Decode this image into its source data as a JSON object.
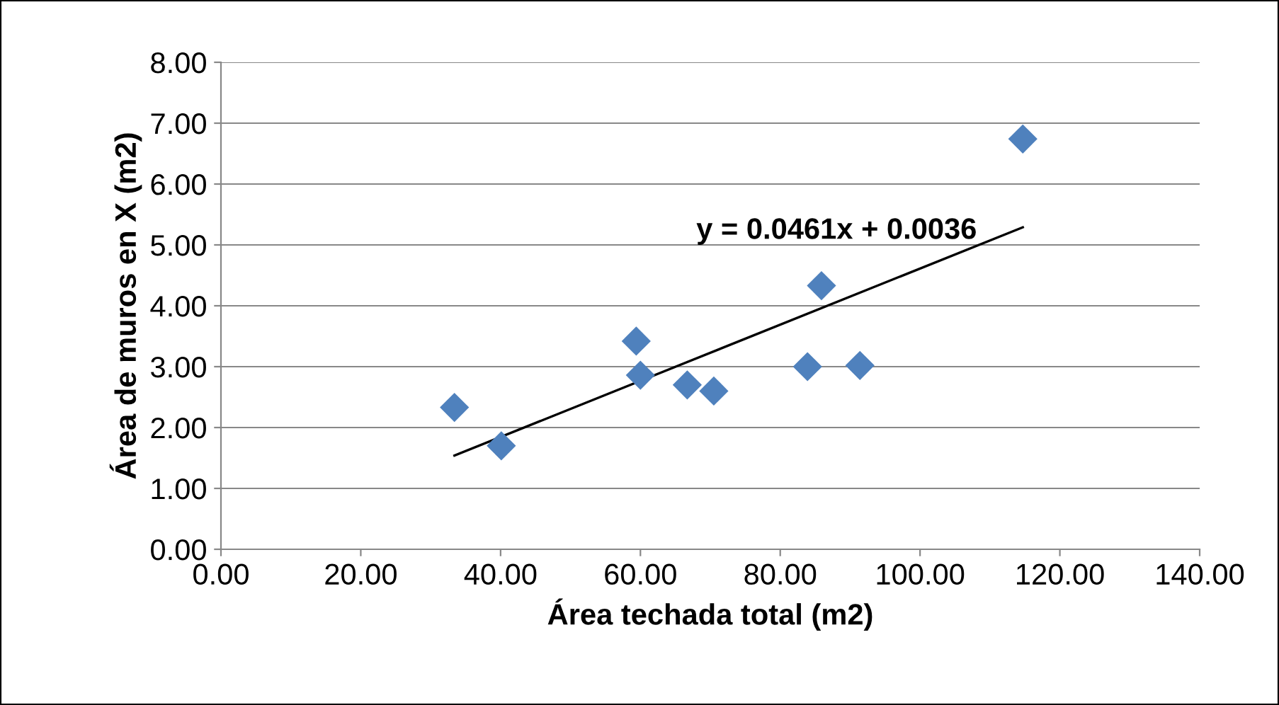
{
  "chart_data": {
    "type": "scatter",
    "xlabel": "Área techada total (m2)",
    "ylabel": "Área de muros en X (m2)",
    "xlim": [
      0,
      140
    ],
    "ylim": [
      0,
      8
    ],
    "xticks": [
      {
        "value": 0,
        "label": "0.00"
      },
      {
        "value": 20,
        "label": "20.00"
      },
      {
        "value": 40,
        "label": "40.00"
      },
      {
        "value": 60,
        "label": "60.00"
      },
      {
        "value": 80,
        "label": "80.00"
      },
      {
        "value": 100,
        "label": "100.00"
      },
      {
        "value": 120,
        "label": "120.00"
      },
      {
        "value": 140,
        "label": "140.00"
      }
    ],
    "yticks": [
      {
        "value": 0,
        "label": "0.00"
      },
      {
        "value": 1,
        "label": "1.00"
      },
      {
        "value": 2,
        "label": "2.00"
      },
      {
        "value": 3,
        "label": "3.00"
      },
      {
        "value": 4,
        "label": "4.00"
      },
      {
        "value": 5,
        "label": "5.00"
      },
      {
        "value": 6,
        "label": "6.00"
      },
      {
        "value": 7,
        "label": "7.00"
      },
      {
        "value": 8,
        "label": "8.00"
      }
    ],
    "grid": "y",
    "legend": false,
    "series": [
      {
        "marker": "diamond",
        "color": "#4f81bd",
        "x": [
          33.4,
          40.1,
          59.4,
          60.0,
          66.7,
          70.5,
          83.9,
          85.9,
          91.4,
          114.7
        ],
        "values": [
          2.33,
          1.7,
          3.42,
          2.86,
          2.7,
          2.6,
          3.0,
          4.33,
          3.02,
          6.74
        ]
      },
      {
        "type": "line",
        "marker": "none",
        "color": "#000000",
        "x": [
          33.4,
          114.7
        ],
        "values": [
          1.54,
          5.29
        ]
      }
    ],
    "annotations": [
      "y = 0.0461x + 0.0036"
    ]
  }
}
